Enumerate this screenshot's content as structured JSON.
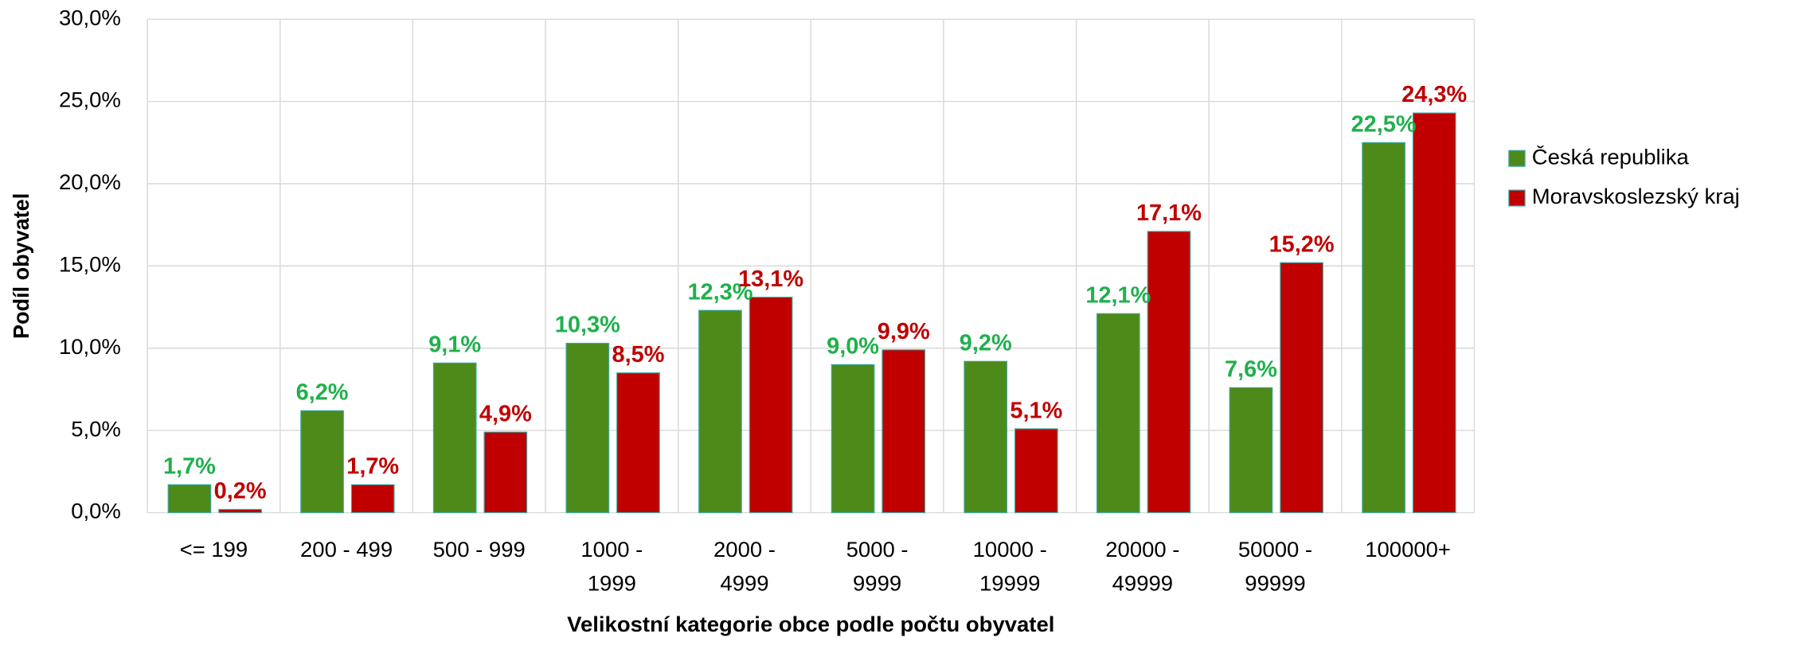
{
  "chart_data": {
    "type": "bar",
    "x_label": "Velikostní kategorie obce podle počtu obyvatel",
    "y_label": "Podíl  obyvatel",
    "categories": [
      "<= 199",
      "200 - 499",
      "500 - 999",
      "1000 - 1999",
      "2000 - 4999",
      "5000 - 9999",
      "10000 - 19999",
      "20000 - 49999",
      "50000 - 99999",
      "100000+"
    ],
    "series": [
      {
        "name": "Česká republika",
        "color": "#4e8a1a",
        "label_color": "#1fb04c",
        "values": [
          1.7,
          6.2,
          9.1,
          10.3,
          12.3,
          9.0,
          9.2,
          12.1,
          7.6,
          22.5
        ],
        "value_labels": [
          "1,7%",
          "6,2%",
          "9,1%",
          "10,3%",
          "12,3%",
          "9,0%",
          "9,2%",
          "12,1%",
          "7,6%",
          "22,5%"
        ]
      },
      {
        "name": "Moravskoslezský kraj",
        "color": "#c00000",
        "label_color": "#c00000",
        "values": [
          0.2,
          1.7,
          4.9,
          8.5,
          13.1,
          9.9,
          5.1,
          17.1,
          15.2,
          24.3
        ],
        "value_labels": [
          "0,2%",
          "1,7%",
          "4,9%",
          "8,5%",
          "13,1%",
          "9,9%",
          "5,1%",
          "17,1%",
          "15,2%",
          "24,3%"
        ]
      }
    ],
    "ylim": [
      0,
      30
    ],
    "yticks": [
      {
        "value": 0,
        "label": "0,0%"
      },
      {
        "value": 5,
        "label": "5,0%"
      },
      {
        "value": 10,
        "label": "10,0%"
      },
      {
        "value": 15,
        "label": "15,0%"
      },
      {
        "value": 20,
        "label": "20,0%"
      },
      {
        "value": 25,
        "label": "25,0%"
      },
      {
        "value": 30,
        "label": "30,0%"
      }
    ],
    "grid": true,
    "legend": "right"
  }
}
